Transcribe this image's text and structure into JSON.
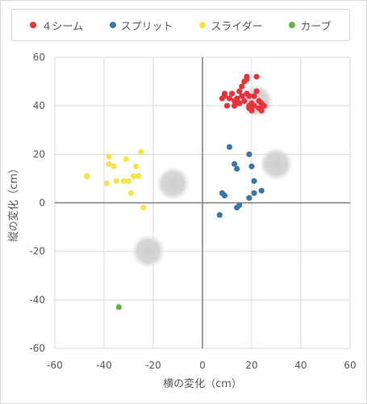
{
  "chart_data": {
    "type": "scatter",
    "xlabel": "横の変化（cm）",
    "ylabel": "縦の変化（cm）",
    "xlim": [
      -60,
      60
    ],
    "ylim": [
      -60,
      60
    ],
    "xticks": [
      -60,
      -40,
      -20,
      0,
      20,
      40,
      60
    ],
    "yticks": [
      -60,
      -40,
      -20,
      0,
      20,
      40,
      60
    ],
    "xtick_labels": [
      "-60",
      "-40",
      "-20",
      "0",
      "20",
      "40",
      "60"
    ],
    "ytick_labels": [
      "-60",
      "-40",
      "-20",
      "0",
      "20",
      "40",
      "60"
    ],
    "grid": true,
    "legend_position": "top",
    "series": [
      {
        "name": "４シーム",
        "color": "#e8333a",
        "points": [
          [
            8,
            43
          ],
          [
            9,
            44
          ],
          [
            9,
            45
          ],
          [
            10,
            40
          ],
          [
            11,
            43
          ],
          [
            12,
            45
          ],
          [
            13,
            40
          ],
          [
            13,
            42
          ],
          [
            14,
            43
          ],
          [
            14,
            42
          ],
          [
            15,
            41
          ],
          [
            15,
            46
          ],
          [
            16,
            44
          ],
          [
            16,
            48
          ],
          [
            17,
            42
          ],
          [
            17,
            50
          ],
          [
            18,
            51
          ],
          [
            18,
            52
          ],
          [
            18,
            45
          ],
          [
            19,
            44
          ],
          [
            19,
            40
          ],
          [
            19,
            39
          ],
          [
            20,
            41
          ],
          [
            20,
            38
          ],
          [
            21,
            40
          ],
          [
            21,
            44
          ],
          [
            22,
            52
          ],
          [
            22,
            46
          ],
          [
            23,
            42
          ],
          [
            23,
            39
          ],
          [
            24,
            41
          ],
          [
            24,
            38
          ],
          [
            25,
            40
          ]
        ]
      },
      {
        "name": "スプリット",
        "color": "#3a77a8",
        "points": [
          [
            7,
            -5
          ],
          [
            8,
            4
          ],
          [
            9,
            3
          ],
          [
            11,
            23
          ],
          [
            13,
            16
          ],
          [
            14,
            14
          ],
          [
            14,
            -2
          ],
          [
            15,
            -1
          ],
          [
            19,
            2
          ],
          [
            19,
            20
          ],
          [
            20,
            15
          ],
          [
            21,
            4
          ],
          [
            21,
            9
          ],
          [
            24,
            5
          ]
        ]
      },
      {
        "name": "スライダー",
        "color": "#f4e34a",
        "points": [
          [
            -47,
            11
          ],
          [
            -39,
            8
          ],
          [
            -38,
            19
          ],
          [
            -38,
            16
          ],
          [
            -36,
            15
          ],
          [
            -35,
            9
          ],
          [
            -32,
            9
          ],
          [
            -31,
            18
          ],
          [
            -30,
            9
          ],
          [
            -29,
            4
          ],
          [
            -28,
            11
          ],
          [
            -27,
            15
          ],
          [
            -26,
            11
          ],
          [
            -25,
            21
          ],
          [
            -24,
            -2
          ]
        ]
      },
      {
        "name": "カーブ",
        "color": "#6ab04c",
        "points": [
          [
            -34,
            -43
          ]
        ]
      }
    ],
    "shadow_markers": [
      [
        -12,
        8
      ],
      [
        -22,
        -20
      ],
      [
        22,
        42
      ],
      [
        30,
        16
      ]
    ]
  }
}
